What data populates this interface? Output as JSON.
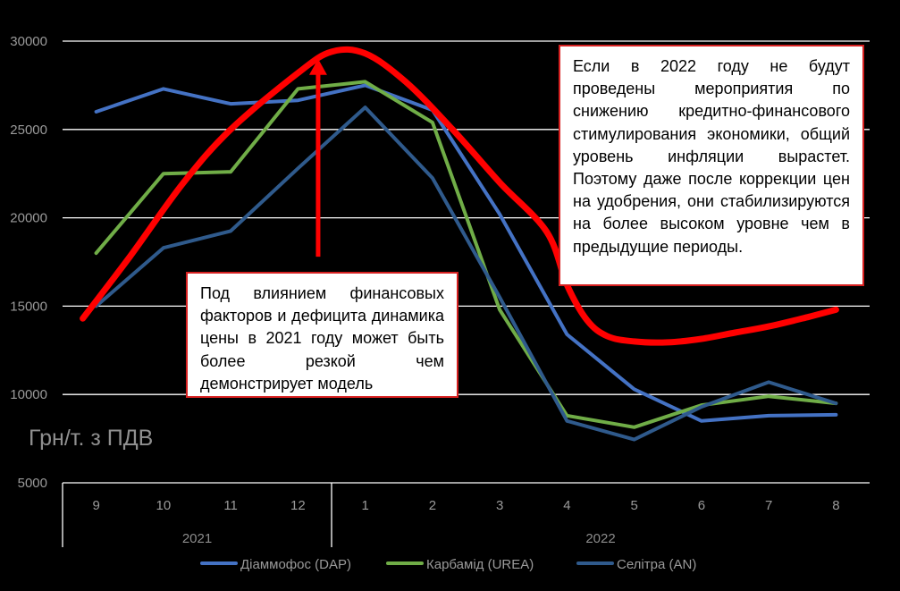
{
  "chart_data": {
    "type": "line",
    "categories": [
      "9",
      "10",
      "11",
      "12",
      "1",
      "2",
      "3",
      "4",
      "5",
      "6",
      "7",
      "8"
    ],
    "year_groups": [
      {
        "label": "2021",
        "from": 0,
        "to": 3
      },
      {
        "label": "2022",
        "from": 4,
        "to": 11
      }
    ],
    "ylim": [
      5000,
      30000
    ],
    "yticks": [
      5000,
      10000,
      15000,
      20000,
      25000,
      30000
    ],
    "ylabel": "Грн/т. з ПДВ",
    "grid": true,
    "legend_position": "bottom",
    "series": [
      {
        "name": "Діаммофос (DAP)",
        "color": "#4472c4",
        "values": [
          26000,
          27300,
          26450,
          26650,
          27500,
          26100,
          20200,
          13400,
          10300,
          8500,
          8800,
          8850
        ]
      },
      {
        "name": "Карбамід (UREA)",
        "color": "#70ad47",
        "values": [
          18000,
          22500,
          22600,
          27300,
          27700,
          25400,
          14800,
          8800,
          8150,
          9400,
          9900,
          9500
        ]
      },
      {
        "name": "Селітра (AN)",
        "color": "#2f5a8c",
        "values": [
          15000,
          18300,
          19250,
          22800,
          26250,
          22250,
          15500,
          8500,
          7450,
          9300,
          10700,
          9500
        ]
      }
    ],
    "trend": {
      "color": "#ff0000",
      "x": [
        -0.2,
        0.5,
        1.3,
        2.0,
        3.0,
        3.5,
        4.0,
        4.6,
        5.3,
        6.0,
        6.7,
        7.0,
        7.3,
        7.6,
        8.0,
        8.5,
        9.0,
        9.5,
        10.0,
        10.6,
        11.0
      ],
      "y": [
        14300,
        17800,
        22000,
        25000,
        28200,
        29400,
        29300,
        27700,
        25000,
        22000,
        19200,
        16200,
        14200,
        13300,
        13000,
        12950,
        13150,
        13500,
        13850,
        14400,
        14800
      ]
    },
    "arrow": {
      "x": 3.3,
      "y_from": 17800,
      "y_to": 29000
    }
  },
  "annotations": {
    "callout_2021": "Под влиянием финансовых факторов и дефицита динамика цены в 2021 году может быть более резкой чем демонстрирует модель",
    "callout_2022": "Если в 2022 году не будут проведены мероприятия по снижению кредитно-финансового стимулирования экономики, общий уровень инфляции вырастет. Поэтому даже после коррекции цен на удобрения, они стабилизируются на более высоком уровне чем в предыдущие периоды."
  }
}
